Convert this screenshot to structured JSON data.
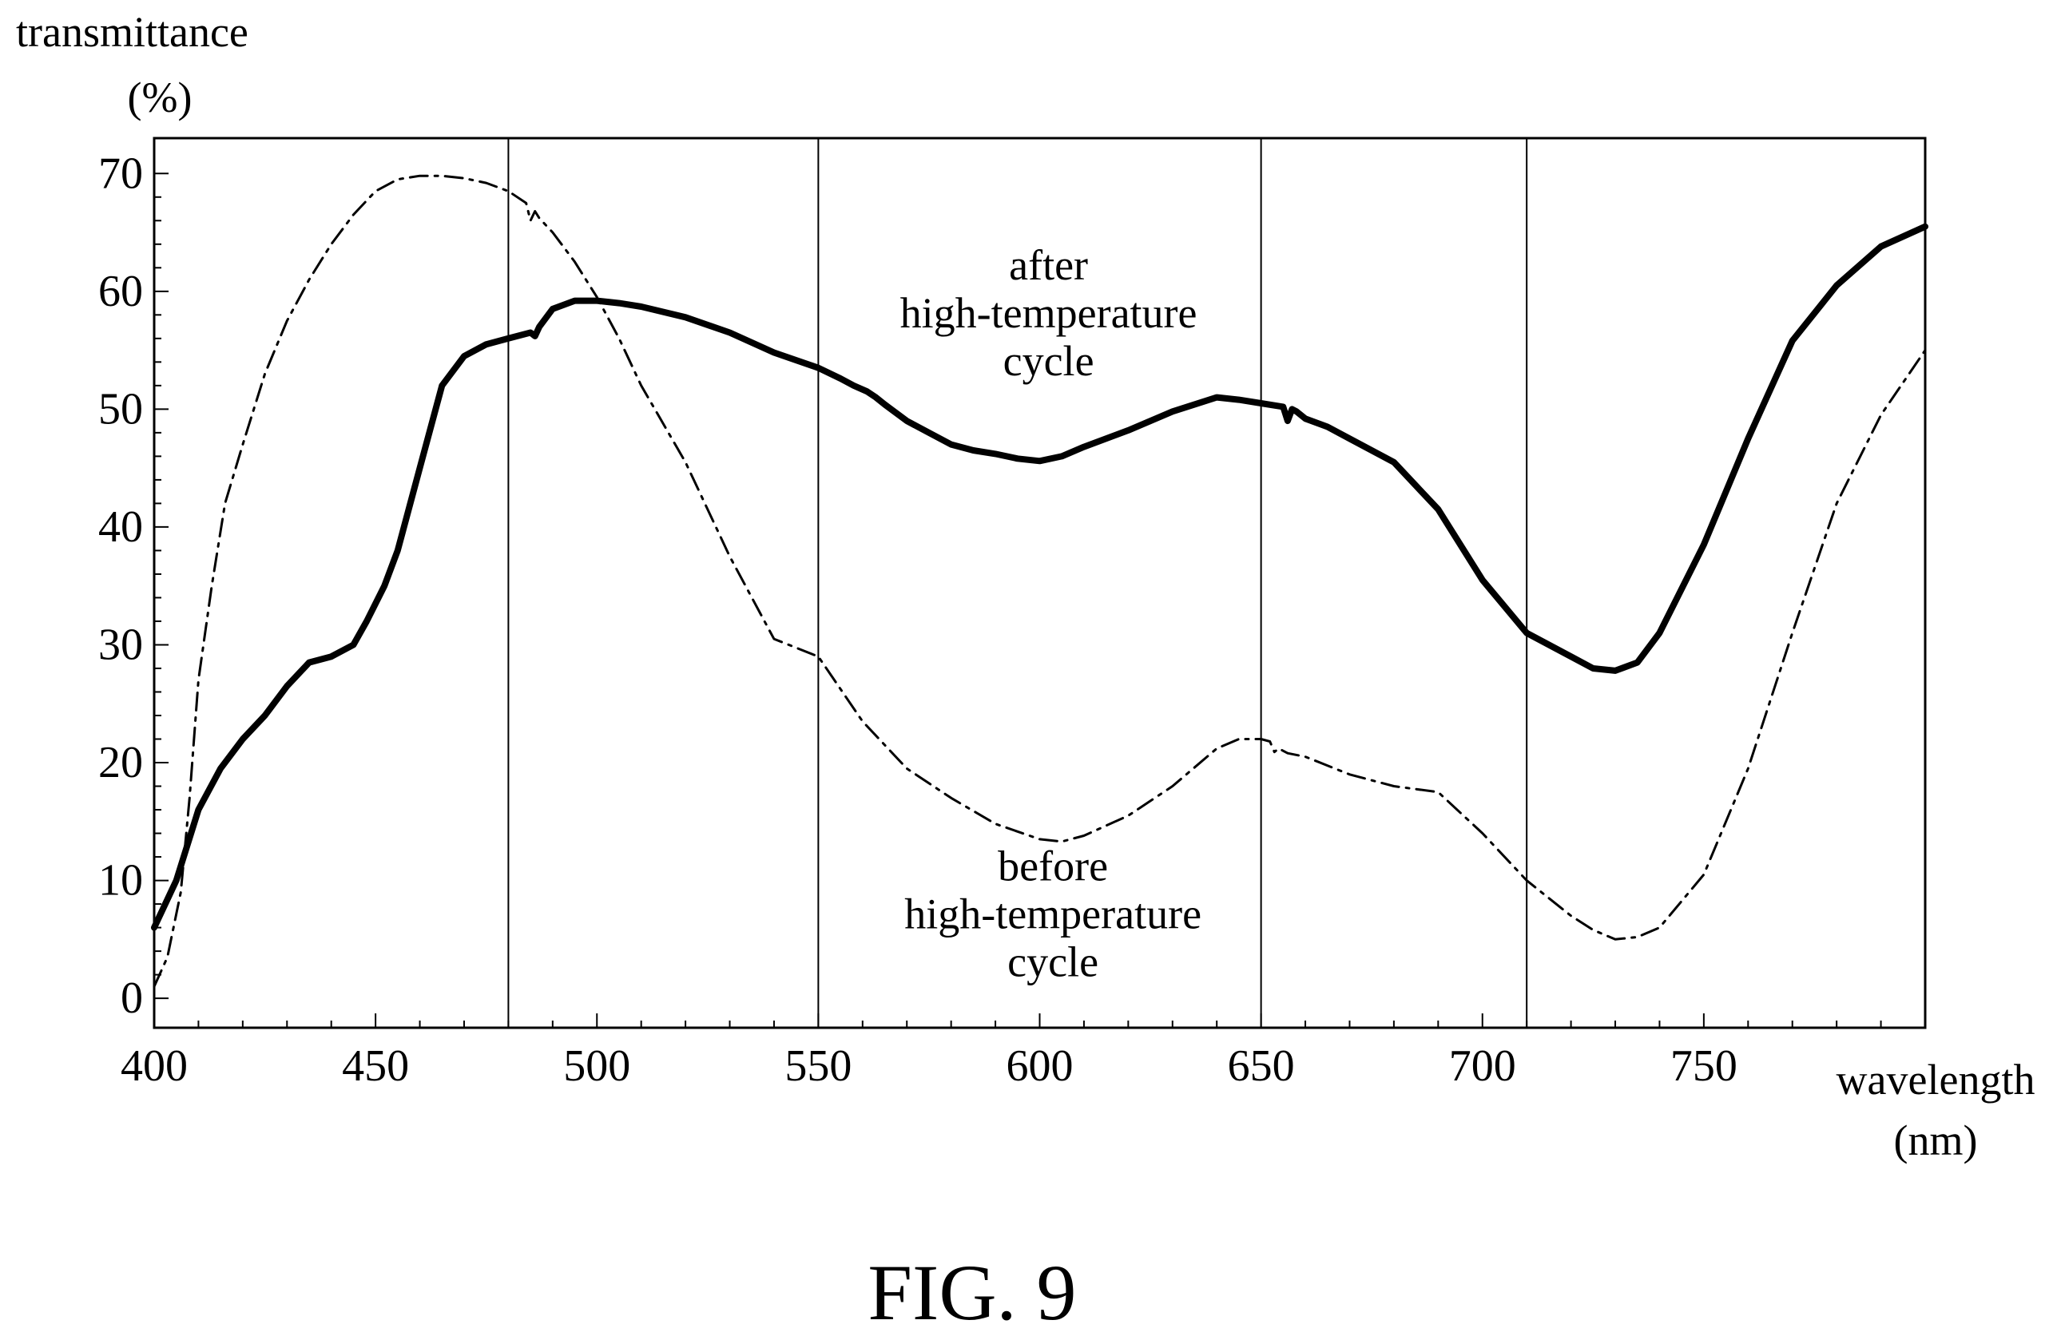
{
  "figure_label": "FIG. 9",
  "chart_data": {
    "type": "line",
    "ylabel_line1": "transmittance",
    "ylabel_line2": "(%)",
    "xlabel_line1": "wavelength",
    "xlabel_line2": "(nm)",
    "xlim": [
      400,
      800
    ],
    "ylim": [
      -2.5,
      73
    ],
    "x_ticks": [
      400,
      450,
      500,
      550,
      600,
      650,
      700,
      750
    ],
    "y_ticks": [
      0,
      10,
      20,
      30,
      40,
      50,
      60,
      70
    ],
    "vertical_lines": [
      480,
      550,
      650,
      710
    ],
    "grid": false,
    "annotations": [
      {
        "lines": [
          "after",
          "high-temperature",
          "cycle"
        ],
        "x": 602,
        "y": 61
      },
      {
        "lines": [
          "before",
          "high-temperature",
          "cycle"
        ],
        "x": 603,
        "y": 10
      }
    ],
    "series": [
      {
        "label_ref": 0,
        "style": "solid-thick",
        "x": [
          400,
          405,
          410,
          415,
          420,
          425,
          430,
          435,
          440,
          445,
          448,
          452,
          455,
          460,
          465,
          470,
          475,
          480,
          485,
          486,
          487,
          490,
          495,
          500,
          505,
          510,
          520,
          530,
          540,
          550,
          555,
          558,
          561,
          563,
          565,
          570,
          575,
          580,
          585,
          590,
          595,
          600,
          605,
          610,
          620,
          630,
          640,
          645,
          650,
          655,
          656,
          657,
          658,
          660,
          665,
          670,
          680,
          690,
          700,
          710,
          720,
          725,
          730,
          735,
          740,
          750,
          760,
          770,
          780,
          790,
          800
        ],
        "y": [
          6,
          10,
          16,
          19.5,
          22,
          24,
          26.5,
          28.5,
          29,
          30,
          32,
          35,
          38,
          45,
          52,
          54.5,
          55.5,
          56,
          56.5,
          56.2,
          57,
          58.5,
          59.2,
          59.2,
          59,
          58.7,
          57.8,
          56.5,
          54.8,
          53.5,
          52.6,
          52,
          51.5,
          51,
          50.4,
          49,
          48,
          47,
          46.5,
          46.2,
          45.8,
          45.6,
          46,
          46.8,
          48.2,
          49.8,
          51,
          50.8,
          50.5,
          50.2,
          49,
          50,
          49.8,
          49.2,
          48.5,
          47.5,
          45.5,
          41.5,
          35.5,
          31,
          29,
          28,
          27.8,
          28.5,
          31,
          38.5,
          47.5,
          55.8,
          60.5,
          63.8,
          65.5
        ]
      },
      {
        "label_ref": 1,
        "style": "dash-dot",
        "x": [
          400,
          403,
          406,
          408,
          410,
          413,
          416,
          420,
          425,
          430,
          435,
          440,
          445,
          450,
          455,
          460,
          465,
          470,
          475,
          480,
          484,
          485,
          486,
          487,
          490,
          495,
          500,
          505,
          510,
          520,
          530,
          540,
          550,
          560,
          570,
          580,
          590,
          600,
          605,
          610,
          620,
          630,
          640,
          645,
          650,
          652,
          653,
          654,
          656,
          660,
          670,
          680,
          690,
          700,
          710,
          720,
          725,
          730,
          735,
          740,
          750,
          760,
          770,
          780,
          790,
          800
        ],
        "y": [
          1,
          3.5,
          9,
          17,
          27,
          35,
          42,
          47,
          53,
          57.5,
          61,
          64,
          66.5,
          68.5,
          69.5,
          69.8,
          69.8,
          69.6,
          69.2,
          68.5,
          67.5,
          66,
          66.8,
          66.2,
          65,
          62.5,
          59.5,
          56,
          52,
          45.5,
          37.5,
          30.5,
          29,
          23.5,
          19.5,
          17,
          14.8,
          13.5,
          13.3,
          13.8,
          15.5,
          18,
          21.2,
          22,
          22,
          21.8,
          20.9,
          21.2,
          20.8,
          20.5,
          19,
          18,
          17.5,
          14,
          10,
          7,
          5.8,
          5,
          5.2,
          6,
          10.5,
          19.5,
          31,
          42,
          49.5,
          55
        ]
      }
    ]
  }
}
